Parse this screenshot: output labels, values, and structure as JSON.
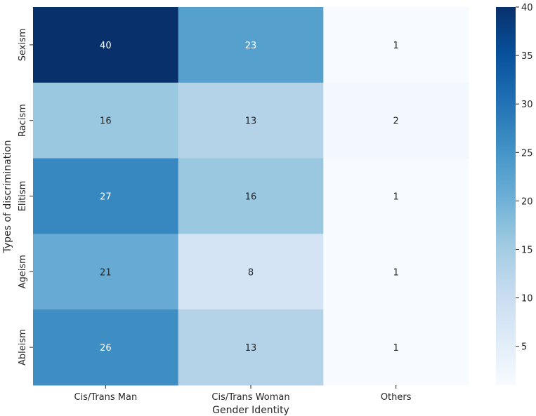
{
  "chart_data": {
    "type": "heatmap",
    "title": "",
    "xlabel": "Gender Identity",
    "ylabel": "Types of discrimination",
    "x_categories": [
      "Cis/Trans Man",
      "Cis/Trans Woman",
      "Others"
    ],
    "y_categories": [
      "Sexism",
      "Racism",
      "Elitism",
      "Ageism",
      "Ableism"
    ],
    "values": [
      [
        40,
        23,
        1
      ],
      [
        16,
        13,
        2
      ],
      [
        27,
        16,
        1
      ],
      [
        21,
        8,
        1
      ],
      [
        26,
        13,
        1
      ]
    ],
    "colorbar": {
      "min": 1,
      "max": 40,
      "ticks": [
        5,
        10,
        15,
        20,
        25,
        30,
        35,
        40
      ],
      "colormap": "Blues"
    },
    "annotations": true
  }
}
